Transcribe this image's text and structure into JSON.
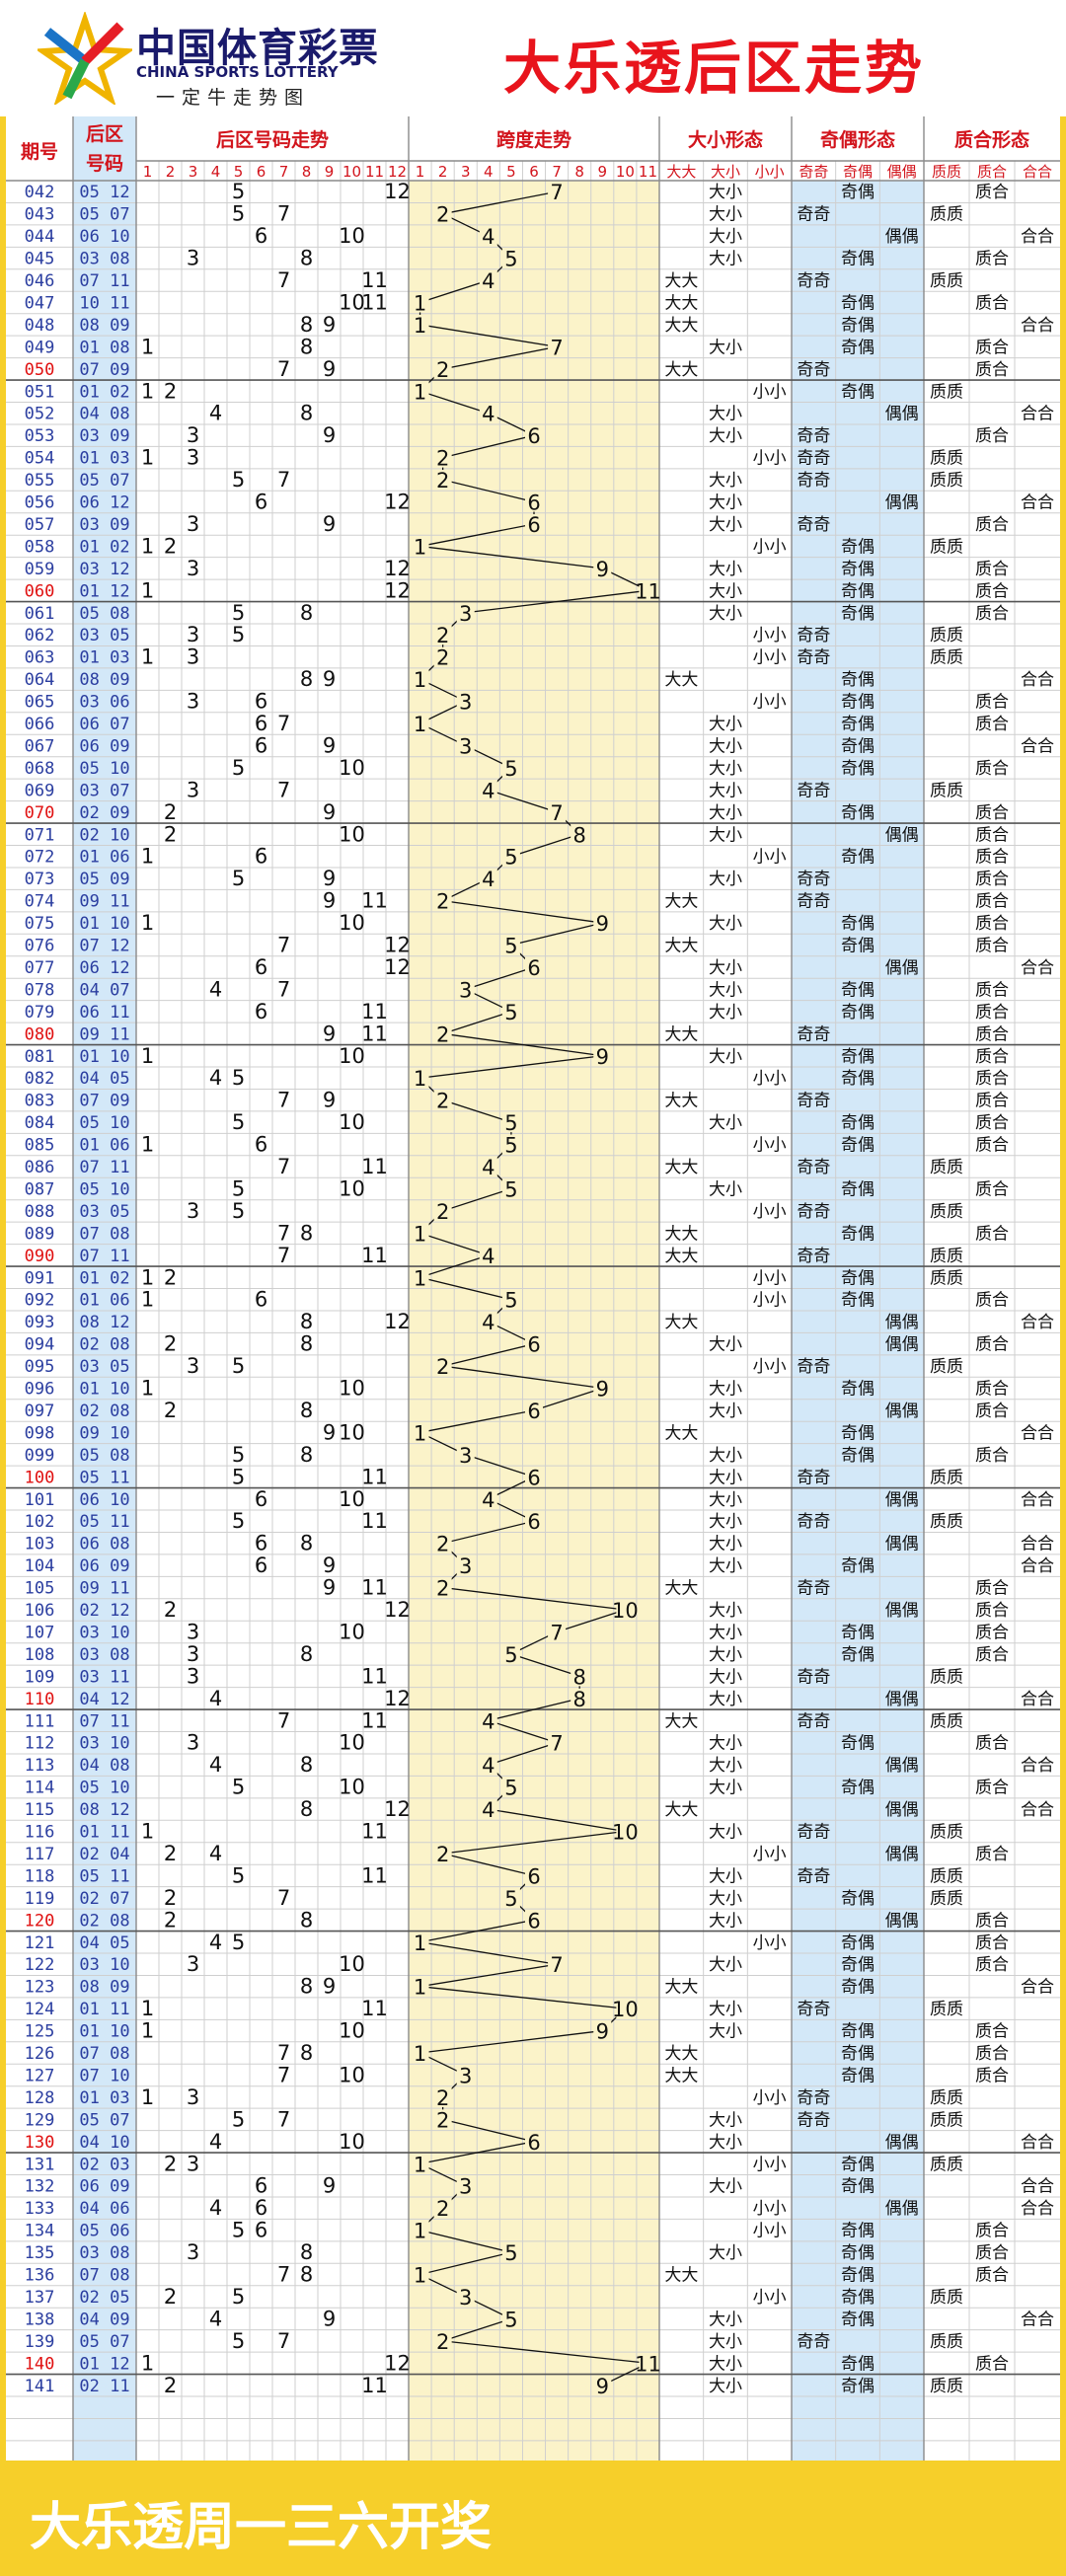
{
  "header": {
    "logo_cn": "中国体育彩票",
    "logo_en": "CHINA SPORTS LOTTERY",
    "logo_sub": "一定牛走势图",
    "title": "大乐透后区走势"
  },
  "footer": {
    "text": "大乐透周一三六开奖"
  },
  "colors": {
    "accent": "#e8141c",
    "frame": "#f6cf2a",
    "span_bg": "#fbf3c9",
    "parity_bg": "#d3e8f8",
    "period_blue": "#2b3ea0"
  },
  "chart_data": {
    "type": "table",
    "columns": {
      "period": "期号",
      "back": "后区号码",
      "back_trend": "后区号码走势",
      "span_trend": "跨度走势",
      "size": "大小形态",
      "parity": "奇偶形态",
      "prime": "质合形态"
    },
    "back_cols": [
      "1",
      "2",
      "3",
      "4",
      "5",
      "6",
      "7",
      "8",
      "9",
      "10",
      "11",
      "12"
    ],
    "span_cols": [
      "1",
      "2",
      "3",
      "4",
      "5",
      "6",
      "7",
      "8",
      "9",
      "10",
      "11"
    ],
    "size_cols": [
      "大大",
      "大小",
      "小小"
    ],
    "parity_cols": [
      "奇奇",
      "奇偶",
      "偶偶"
    ],
    "prime_cols": [
      "质质",
      "质合",
      "合合"
    ],
    "rows": [
      [
        "042",
        "05 12"
      ],
      [
        "043",
        "05 07"
      ],
      [
        "044",
        "06 10"
      ],
      [
        "045",
        "03 08"
      ],
      [
        "046",
        "07 11"
      ],
      [
        "047",
        "10 11"
      ],
      [
        "048",
        "08 09"
      ],
      [
        "049",
        "01 08"
      ],
      [
        "050",
        "07 09"
      ],
      [
        "051",
        "01 02"
      ],
      [
        "052",
        "04 08"
      ],
      [
        "053",
        "03 09"
      ],
      [
        "054",
        "01 03"
      ],
      [
        "055",
        "05 07"
      ],
      [
        "056",
        "06 12"
      ],
      [
        "057",
        "03 09"
      ],
      [
        "058",
        "01 02"
      ],
      [
        "059",
        "03 12"
      ],
      [
        "060",
        "01 12"
      ],
      [
        "061",
        "05 08"
      ],
      [
        "062",
        "03 05"
      ],
      [
        "063",
        "01 03"
      ],
      [
        "064",
        "08 09"
      ],
      [
        "065",
        "03 06"
      ],
      [
        "066",
        "06 07"
      ],
      [
        "067",
        "06 09"
      ],
      [
        "068",
        "05 10"
      ],
      [
        "069",
        "03 07"
      ],
      [
        "070",
        "02 09"
      ],
      [
        "071",
        "02 10"
      ],
      [
        "072",
        "01 06"
      ],
      [
        "073",
        "05 09"
      ],
      [
        "074",
        "09 11"
      ],
      [
        "075",
        "01 10"
      ],
      [
        "076",
        "07 12"
      ],
      [
        "077",
        "06 12"
      ],
      [
        "078",
        "04 07"
      ],
      [
        "079",
        "06 11"
      ],
      [
        "080",
        "09 11"
      ],
      [
        "081",
        "01 10"
      ],
      [
        "082",
        "04 05"
      ],
      [
        "083",
        "07 09"
      ],
      [
        "084",
        "05 10"
      ],
      [
        "085",
        "01 06"
      ],
      [
        "086",
        "07 11"
      ],
      [
        "087",
        "05 10"
      ],
      [
        "088",
        "03 05"
      ],
      [
        "089",
        "07 08"
      ],
      [
        "090",
        "07 11"
      ],
      [
        "091",
        "01 02"
      ],
      [
        "092",
        "01 06"
      ],
      [
        "093",
        "08 12"
      ],
      [
        "094",
        "02 08"
      ],
      [
        "095",
        "03 05"
      ],
      [
        "096",
        "01 10"
      ],
      [
        "097",
        "02 08"
      ],
      [
        "098",
        "09 10"
      ],
      [
        "099",
        "05 08"
      ],
      [
        "100",
        "05 11"
      ],
      [
        "101",
        "06 10"
      ],
      [
        "102",
        "05 11"
      ],
      [
        "103",
        "06 08"
      ],
      [
        "104",
        "06 09"
      ],
      [
        "105",
        "09 11"
      ],
      [
        "106",
        "02 12"
      ],
      [
        "107",
        "03 10"
      ],
      [
        "108",
        "03 08"
      ],
      [
        "109",
        "03 11"
      ],
      [
        "110",
        "04 12"
      ],
      [
        "111",
        "07 11"
      ],
      [
        "112",
        "03 10"
      ],
      [
        "113",
        "04 08"
      ],
      [
        "114",
        "05 10"
      ],
      [
        "115",
        "08 12"
      ],
      [
        "116",
        "01 11"
      ],
      [
        "117",
        "02 04"
      ],
      [
        "118",
        "05 11"
      ],
      [
        "119",
        "02 07"
      ],
      [
        "120",
        "02 08"
      ],
      [
        "121",
        "04 05"
      ],
      [
        "122",
        "03 10"
      ],
      [
        "123",
        "08 09"
      ],
      [
        "124",
        "01 11"
      ],
      [
        "125",
        "01 10"
      ],
      [
        "126",
        "07 08"
      ],
      [
        "127",
        "07 10"
      ],
      [
        "128",
        "01 03"
      ],
      [
        "129",
        "05 07"
      ],
      [
        "130",
        "04 10"
      ],
      [
        "131",
        "02 03"
      ],
      [
        "132",
        "06 09"
      ],
      [
        "133",
        "04 06"
      ],
      [
        "134",
        "05 06"
      ],
      [
        "135",
        "03 08"
      ],
      [
        "136",
        "07 08"
      ],
      [
        "137",
        "02 05"
      ],
      [
        "138",
        "04 09"
      ],
      [
        "139",
        "05 07"
      ],
      [
        "140",
        "01 12"
      ],
      [
        "141",
        "02 11"
      ]
    ]
  }
}
